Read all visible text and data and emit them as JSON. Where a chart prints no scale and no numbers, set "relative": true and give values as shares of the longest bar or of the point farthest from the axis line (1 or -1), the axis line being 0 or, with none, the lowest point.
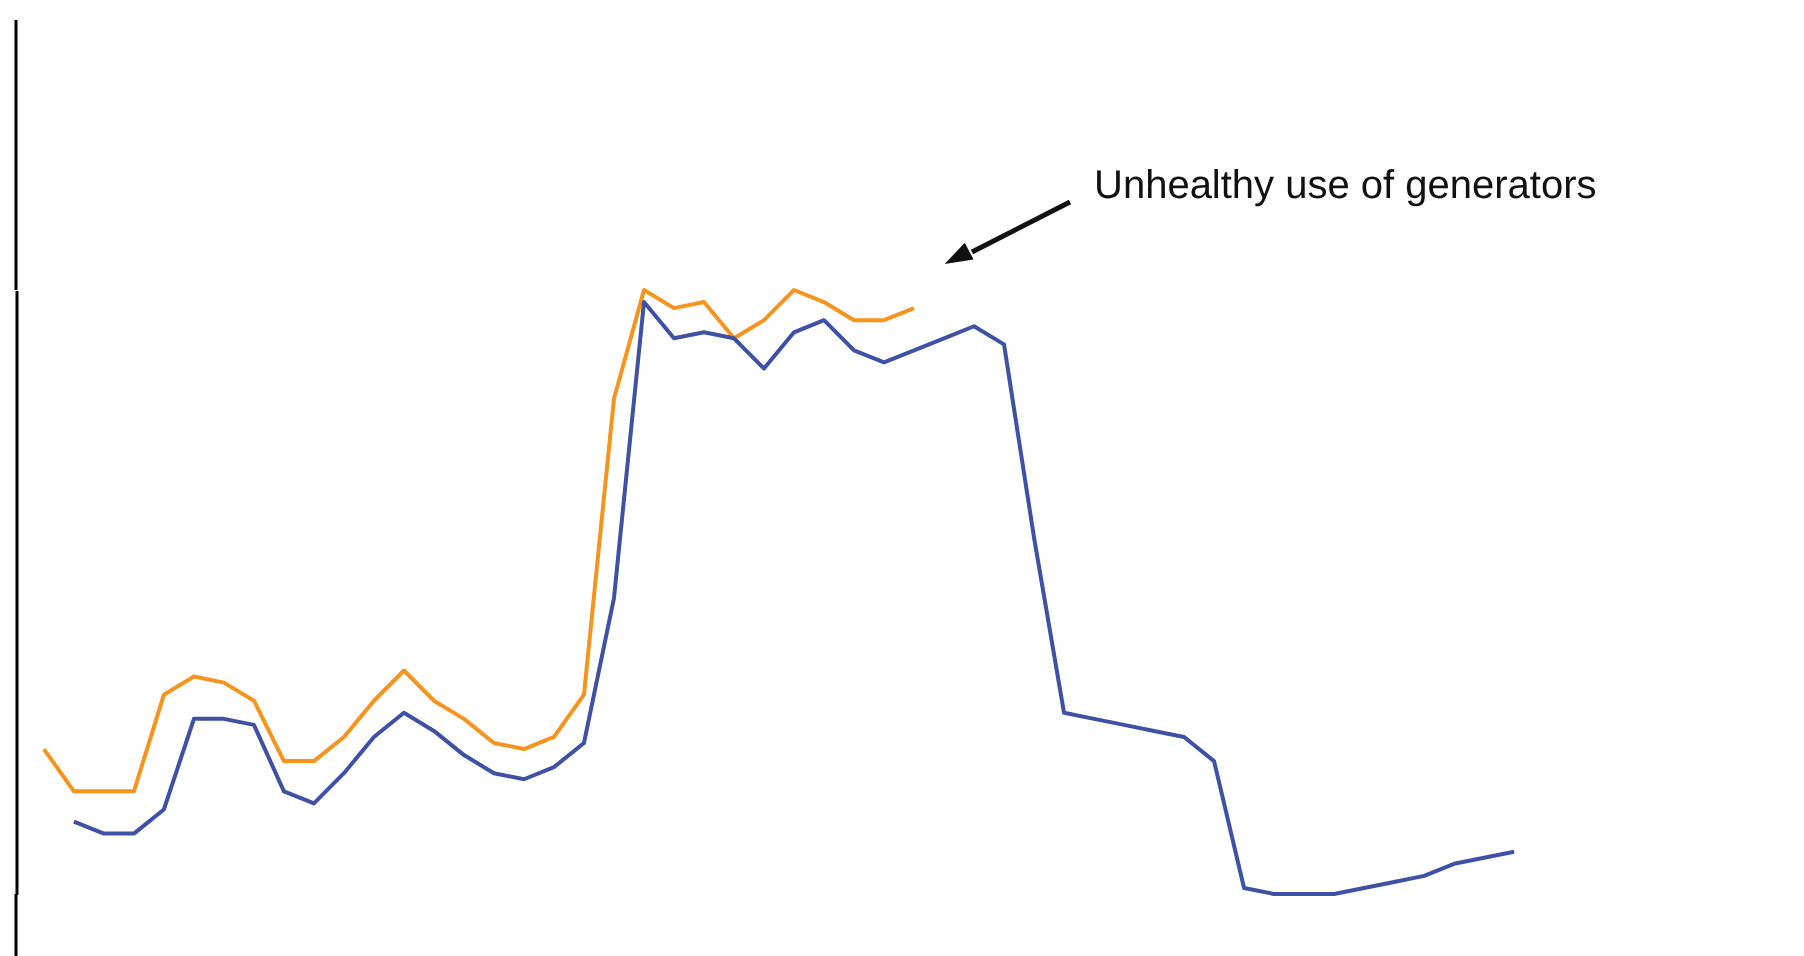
{
  "chart_data": {
    "type": "line",
    "relative": true,
    "categories": [
      null,
      null,
      null,
      null,
      null,
      null,
      null,
      null,
      null,
      null,
      null,
      null,
      null,
      null,
      null,
      null,
      null,
      null,
      null,
      null,
      null,
      null,
      null,
      null,
      null,
      null,
      null,
      null,
      null,
      null,
      null,
      null,
      null,
      null,
      null,
      null,
      null,
      null,
      null,
      null,
      null,
      null,
      null,
      null,
      null,
      null,
      null,
      null,
      null,
      null
    ],
    "series": [
      {
        "color": "#f7941d",
        "values": [
          0.24,
          0.17,
          0.17,
          0.17,
          0.33,
          0.36,
          0.35,
          0.32,
          0.22,
          0.22,
          0.26,
          0.32,
          0.37,
          0.32,
          0.29,
          0.25,
          0.24,
          0.26,
          0.33,
          0.82,
          1.0,
          0.97,
          0.98,
          0.92,
          0.95,
          1.0,
          0.98,
          0.95,
          0.95,
          0.97,
          null,
          null,
          null,
          null,
          null,
          null,
          null,
          null,
          null,
          null,
          null,
          null,
          null,
          null,
          null,
          null,
          null,
          null,
          null,
          null
        ]
      },
      {
        "color": "#3f51a5",
        "values": [
          null,
          0.12,
          0.1,
          0.1,
          0.14,
          0.29,
          0.29,
          0.28,
          0.17,
          0.15,
          0.2,
          0.26,
          0.3,
          0.27,
          0.23,
          0.2,
          0.19,
          0.21,
          0.25,
          0.49,
          0.98,
          0.92,
          0.93,
          0.92,
          0.87,
          0.93,
          0.95,
          0.9,
          0.88,
          0.9,
          0.92,
          0.94,
          0.91,
          0.59,
          0.3,
          0.29,
          0.28,
          0.27,
          0.26,
          0.22,
          0.01,
          0.0,
          0.0,
          0.0,
          0.01,
          0.02,
          0.03,
          0.05,
          0.06,
          0.07
        ]
      }
    ],
    "annotations": [
      "Unhealthy use of generators"
    ],
    "grid": false,
    "line_style": "solid",
    "marker": "none"
  }
}
